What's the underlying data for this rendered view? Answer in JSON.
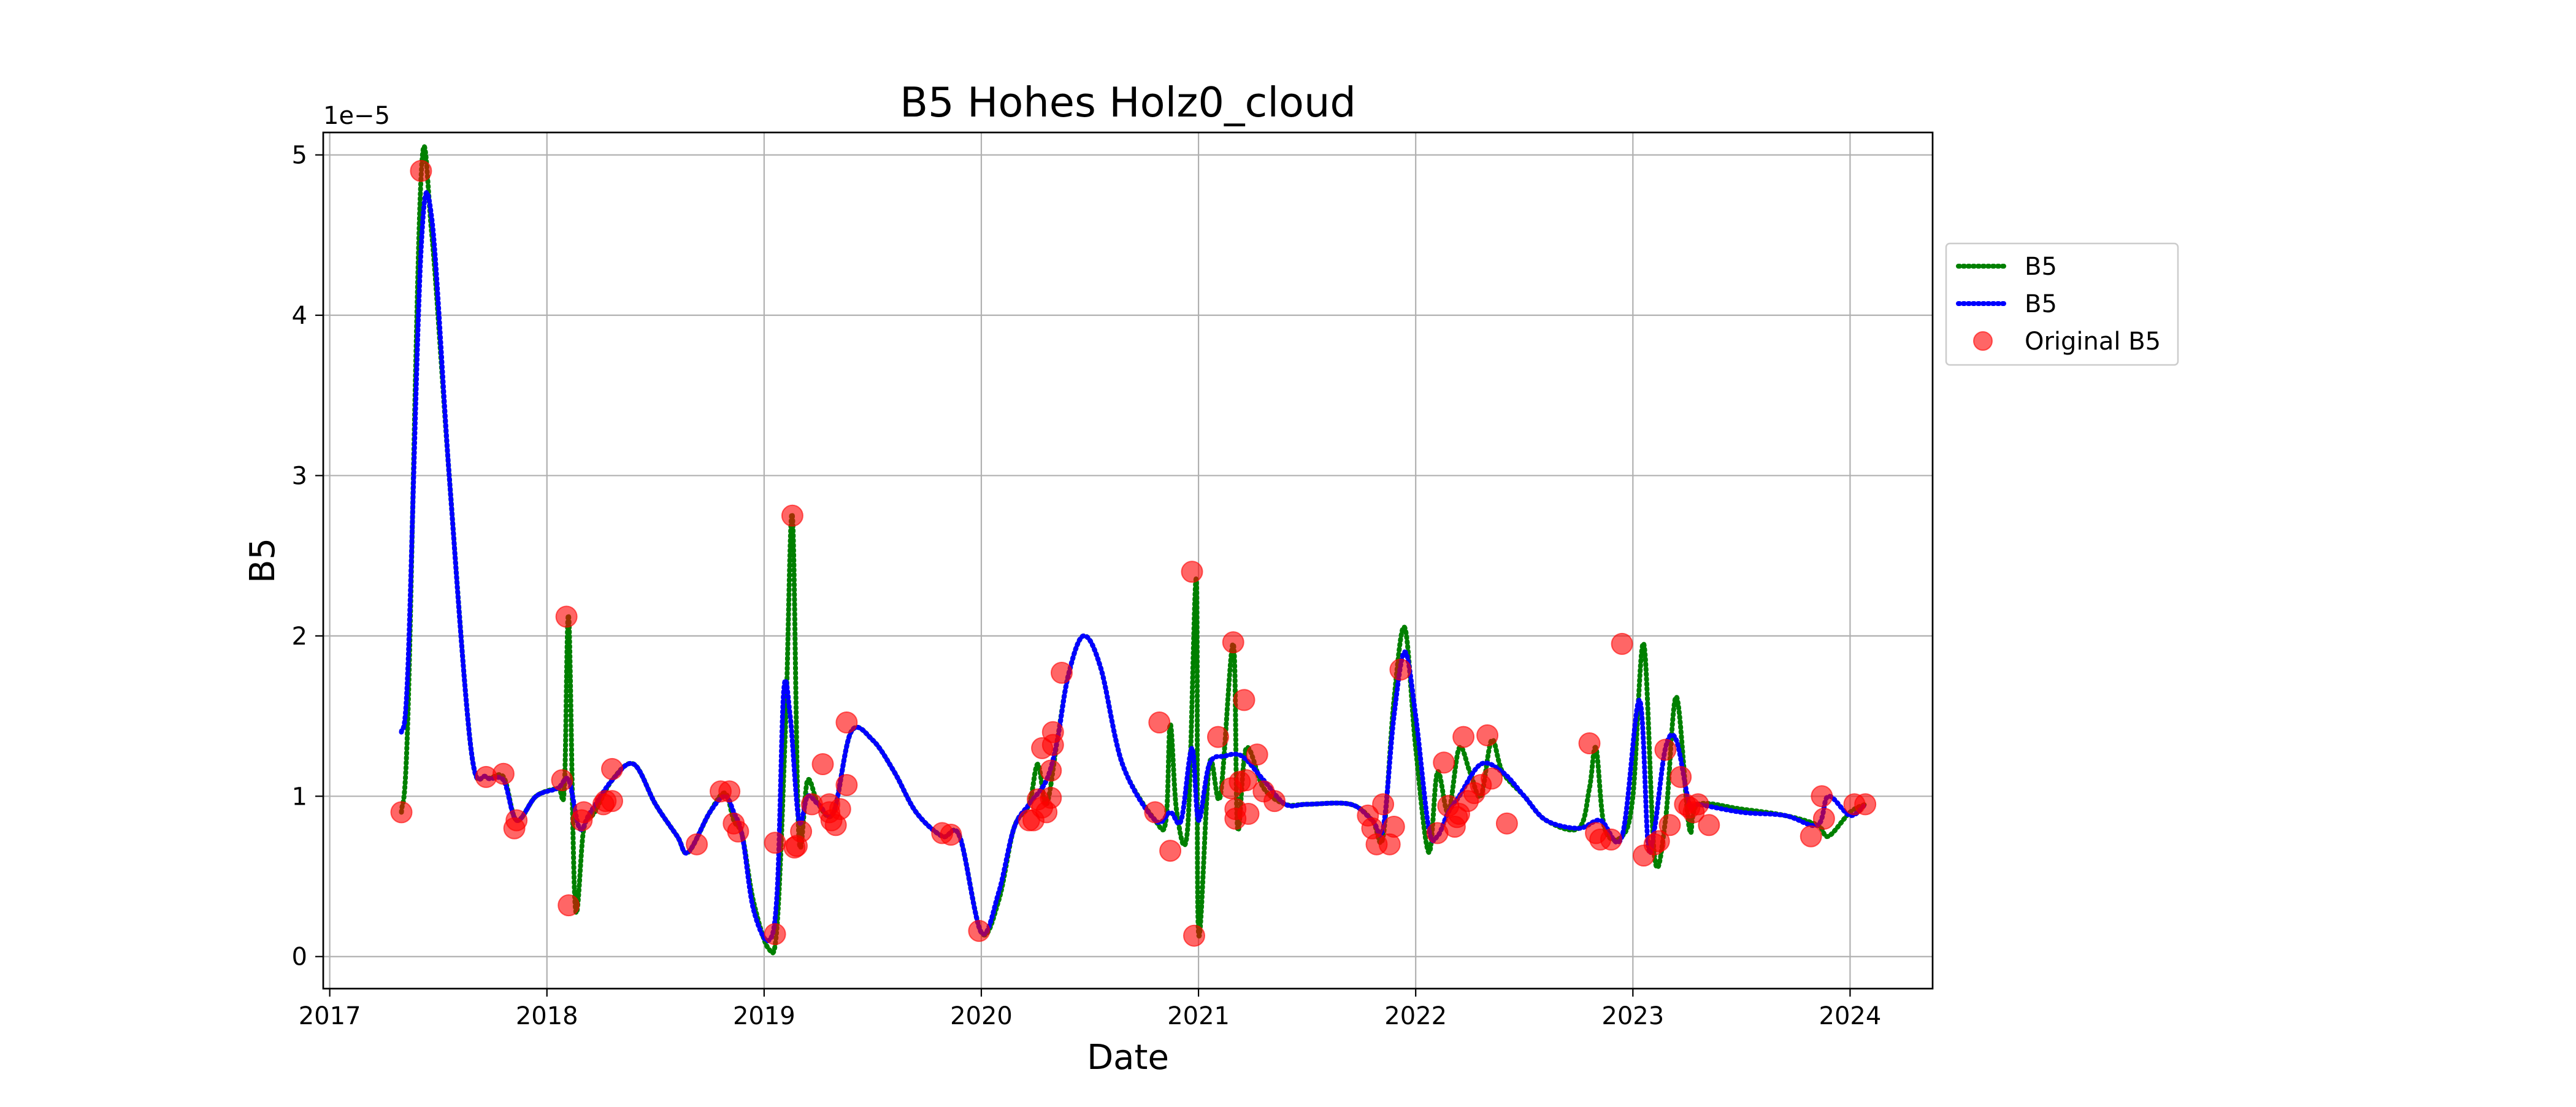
{
  "chart_data": {
    "type": "line",
    "title": "B5 Hohes Holz0_cloud",
    "xlabel": "Date",
    "ylabel": "B5",
    "y_offset_text": "1e−5",
    "y_scale_factor": 1e-05,
    "xlim": [
      2016.97,
      2024.38
    ],
    "ylim": [
      -0.2,
      5.14
    ],
    "grid": true,
    "legend_location": "outside right, upper",
    "x_ticks": [
      {
        "value": 2017,
        "label": "2017"
      },
      {
        "value": 2018,
        "label": "2018"
      },
      {
        "value": 2019,
        "label": "2019"
      },
      {
        "value": 2020,
        "label": "2020"
      },
      {
        "value": 2021,
        "label": "2021"
      },
      {
        "value": 2022,
        "label": "2022"
      },
      {
        "value": 2023,
        "label": "2023"
      },
      {
        "value": 2024,
        "label": "2024"
      }
    ],
    "y_ticks": [
      {
        "value": 0,
        "label": "0"
      },
      {
        "value": 1,
        "label": "1"
      },
      {
        "value": 2,
        "label": "2"
      },
      {
        "value": 3,
        "label": "3"
      },
      {
        "value": 4,
        "label": "4"
      },
      {
        "value": 5,
        "label": "5"
      }
    ],
    "series": [
      {
        "name": "B5",
        "style": "dotted",
        "color": "#008000",
        "x": [
          2017.33,
          2017.36,
          2017.42,
          2017.47,
          2017.55,
          2017.65,
          2017.72,
          2017.8,
          2017.86,
          2017.95,
          2018.05,
          2018.08,
          2018.1,
          2018.13,
          2018.17,
          2018.22,
          2018.3,
          2018.4,
          2018.5,
          2018.6,
          2018.65,
          2018.75,
          2018.82,
          2018.86,
          2018.9,
          2018.95,
          2019.02,
          2019.06,
          2019.1,
          2019.13,
          2019.16,
          2019.2,
          2019.25,
          2019.32,
          2019.4,
          2019.5,
          2019.6,
          2019.7,
          2019.82,
          2019.9,
          2020.0,
          2020.08,
          2020.15,
          2020.22,
          2020.26,
          2020.3,
          2020.35,
          2020.4,
          2020.47,
          2020.55,
          2020.65,
          2020.8,
          2020.85,
          2020.87,
          2020.9,
          2020.95,
          2020.99,
          2021.0,
          2021.05,
          2021.1,
          2021.16,
          2021.18,
          2021.22,
          2021.3,
          2021.4,
          2021.5,
          2021.7,
          2021.8,
          2021.85,
          2021.9,
          2021.95,
          2022.0,
          2022.06,
          2022.1,
          2022.15,
          2022.2,
          2022.25,
          2022.3,
          2022.35,
          2022.4,
          2022.5,
          2022.6,
          2022.75,
          2022.8,
          2022.83,
          2022.87,
          2022.95,
          2023.0,
          2023.05,
          2023.1,
          2023.15,
          2023.2,
          2023.26,
          2023.3,
          2023.5,
          2023.7,
          2023.85,
          2023.9,
          2024.0,
          2024.07
        ],
        "y": [
          0.9,
          1.5,
          4.85,
          4.5,
          3.0,
          1.3,
          1.12,
          1.12,
          0.85,
          1.0,
          1.05,
          1.05,
          2.12,
          0.32,
          0.8,
          0.9,
          1.1,
          1.2,
          0.95,
          0.75,
          0.65,
          0.9,
          1.02,
          0.85,
          0.75,
          0.35,
          0.05,
          0.2,
          1.5,
          2.75,
          0.75,
          1.1,
          0.95,
          0.9,
          1.4,
          1.35,
          1.15,
          0.9,
          0.75,
          0.75,
          0.15,
          0.35,
          0.8,
          0.95,
          1.2,
          0.95,
          1.35,
          1.75,
          2.0,
          1.8,
          1.2,
          0.85,
          0.85,
          1.45,
          0.9,
          0.8,
          2.35,
          0.15,
          1.2,
          1.0,
          1.95,
          0.8,
          1.3,
          1.05,
          0.95,
          0.95,
          0.95,
          0.85,
          0.75,
          1.6,
          2.05,
          1.3,
          0.65,
          1.15,
          0.9,
          1.3,
          1.15,
          1.0,
          1.35,
          1.15,
          1.0,
          0.85,
          0.8,
          1.05,
          1.3,
          0.8,
          0.75,
          1.0,
          1.95,
          0.62,
          0.85,
          1.62,
          0.8,
          0.95,
          0.92,
          0.88,
          0.82,
          0.75,
          0.9,
          0.95
        ]
      },
      {
        "name": "B5",
        "style": "dotted",
        "color": "#0000ff",
        "x": [
          2017.33,
          2017.36,
          2017.42,
          2017.47,
          2017.55,
          2017.65,
          2017.72,
          2017.8,
          2017.86,
          2017.95,
          2018.05,
          2018.1,
          2018.15,
          2018.2,
          2018.3,
          2018.4,
          2018.5,
          2018.6,
          2018.65,
          2018.75,
          2018.82,
          2018.86,
          2018.9,
          2018.95,
          2019.02,
          2019.06,
          2019.09,
          2019.12,
          2019.16,
          2019.2,
          2019.25,
          2019.32,
          2019.4,
          2019.5,
          2019.6,
          2019.7,
          2019.82,
          2019.9,
          2020.0,
          2020.08,
          2020.15,
          2020.22,
          2020.3,
          2020.35,
          2020.4,
          2020.47,
          2020.55,
          2020.65,
          2020.8,
          2020.87,
          2020.92,
          2020.97,
          2021.0,
          2021.05,
          2021.12,
          2021.2,
          2021.3,
          2021.4,
          2021.5,
          2021.7,
          2021.8,
          2021.85,
          2021.9,
          2021.95,
          2022.0,
          2022.06,
          2022.1,
          2022.15,
          2022.2,
          2022.3,
          2022.4,
          2022.5,
          2022.6,
          2022.75,
          2022.85,
          2022.95,
          2023.03,
          2023.07,
          2023.1,
          2023.15,
          2023.2,
          2023.26,
          2023.3,
          2023.5,
          2023.7,
          2023.85,
          2023.9,
          2024.0,
          2024.07
        ],
        "y": [
          1.4,
          1.8,
          4.4,
          4.6,
          3.0,
          1.3,
          1.12,
          1.1,
          0.85,
          1.0,
          1.05,
          1.1,
          0.8,
          0.9,
          1.1,
          1.2,
          0.95,
          0.75,
          0.65,
          0.9,
          1.0,
          0.9,
          0.75,
          0.3,
          0.1,
          0.4,
          1.65,
          1.5,
          0.85,
          1.0,
          0.95,
          0.9,
          1.4,
          1.35,
          1.15,
          0.9,
          0.75,
          0.75,
          0.15,
          0.4,
          0.8,
          0.95,
          1.1,
          1.35,
          1.75,
          2.0,
          1.8,
          1.2,
          0.85,
          0.9,
          0.85,
          1.3,
          0.85,
          1.2,
          1.25,
          1.25,
          1.1,
          0.95,
          0.95,
          0.95,
          0.85,
          0.8,
          1.5,
          1.9,
          1.5,
          0.8,
          0.75,
          0.9,
          1.0,
          1.2,
          1.15,
          1.0,
          0.85,
          0.8,
          0.85,
          0.75,
          1.6,
          0.7,
          0.8,
          1.3,
          1.35,
          0.95,
          0.95,
          0.9,
          0.88,
          0.82,
          1.0,
          0.88,
          0.95
        ]
      }
    ],
    "scatter": {
      "name": "Original B5",
      "color": "#ff0000",
      "alpha": 0.6,
      "x": [
        2017.33,
        2017.42,
        2017.72,
        2017.8,
        2017.85,
        2017.86,
        2018.07,
        2018.09,
        2018.1,
        2018.16,
        2018.17,
        2018.26,
        2018.27,
        2018.3,
        2018.3,
        2018.69,
        2018.8,
        2018.84,
        2018.86,
        2018.88,
        2019.05,
        2019.05,
        2019.13,
        2019.14,
        2019.15,
        2019.17,
        2019.22,
        2019.27,
        2019.3,
        2019.3,
        2019.31,
        2019.33,
        2019.35,
        2019.38,
        2019.38,
        2019.82,
        2019.86,
        2019.99,
        2020.22,
        2020.24,
        2020.26,
        2020.28,
        2020.28,
        2020.3,
        2020.32,
        2020.32,
        2020.33,
        2020.33,
        2020.37,
        2020.8,
        2020.82,
        2020.87,
        2020.97,
        2020.98,
        2021.09,
        2021.15,
        2021.16,
        2021.17,
        2021.17,
        2021.19,
        2021.21,
        2021.22,
        2021.23,
        2021.27,
        2021.3,
        2021.35,
        2021.78,
        2021.8,
        2021.82,
        2021.85,
        2021.88,
        2021.9,
        2021.93,
        2022.1,
        2022.13,
        2022.15,
        2022.18,
        2022.19,
        2022.2,
        2022.22,
        2022.24,
        2022.27,
        2022.3,
        2022.33,
        2022.35,
        2022.42,
        2022.8,
        2022.83,
        2022.85,
        2022.9,
        2022.95,
        2023.05,
        2023.1,
        2023.12,
        2023.15,
        2023.17,
        2023.22,
        2023.24,
        2023.26,
        2023.28,
        2023.3,
        2023.35,
        2023.82,
        2023.87,
        2023.88,
        2024.02,
        2024.07
      ],
      "y": [
        0.9,
        4.9,
        1.12,
        1.14,
        0.8,
        0.85,
        1.1,
        2.12,
        0.32,
        0.85,
        0.9,
        0.95,
        0.97,
        1.17,
        0.97,
        0.7,
        1.03,
        1.03,
        0.83,
        0.78,
        0.14,
        0.71,
        2.75,
        0.68,
        0.69,
        0.78,
        0.95,
        1.2,
        0.95,
        0.9,
        0.85,
        0.82,
        0.92,
        1.07,
        1.46,
        0.77,
        0.76,
        0.16,
        0.85,
        0.85,
        0.98,
        1.3,
        0.93,
        0.9,
        0.99,
        1.16,
        1.32,
        1.4,
        1.77,
        0.9,
        1.46,
        0.66,
        2.4,
        0.13,
        1.37,
        1.05,
        1.96,
        0.92,
        0.86,
        1.09,
        1.6,
        1.1,
        0.89,
        1.26,
        1.03,
        0.97,
        0.88,
        0.8,
        0.7,
        0.95,
        0.7,
        0.81,
        1.79,
        0.77,
        1.21,
        0.94,
        0.81,
        0.87,
        0.89,
        1.37,
        0.97,
        1.02,
        1.07,
        1.38,
        1.11,
        0.83,
        1.33,
        0.77,
        0.73,
        0.73,
        1.95,
        0.63,
        0.7,
        0.72,
        1.29,
        0.82,
        1.12,
        0.95,
        0.93,
        0.9,
        0.95,
        0.82,
        0.75,
        1.0,
        0.86,
        0.95,
        0.95
      ]
    },
    "legend": [
      {
        "label": "B5",
        "kind": "line",
        "color": "#008000"
      },
      {
        "label": "B5",
        "kind": "line",
        "color": "#0000ff"
      },
      {
        "label": "Original B5",
        "kind": "marker",
        "color": "#ff0000"
      }
    ]
  }
}
